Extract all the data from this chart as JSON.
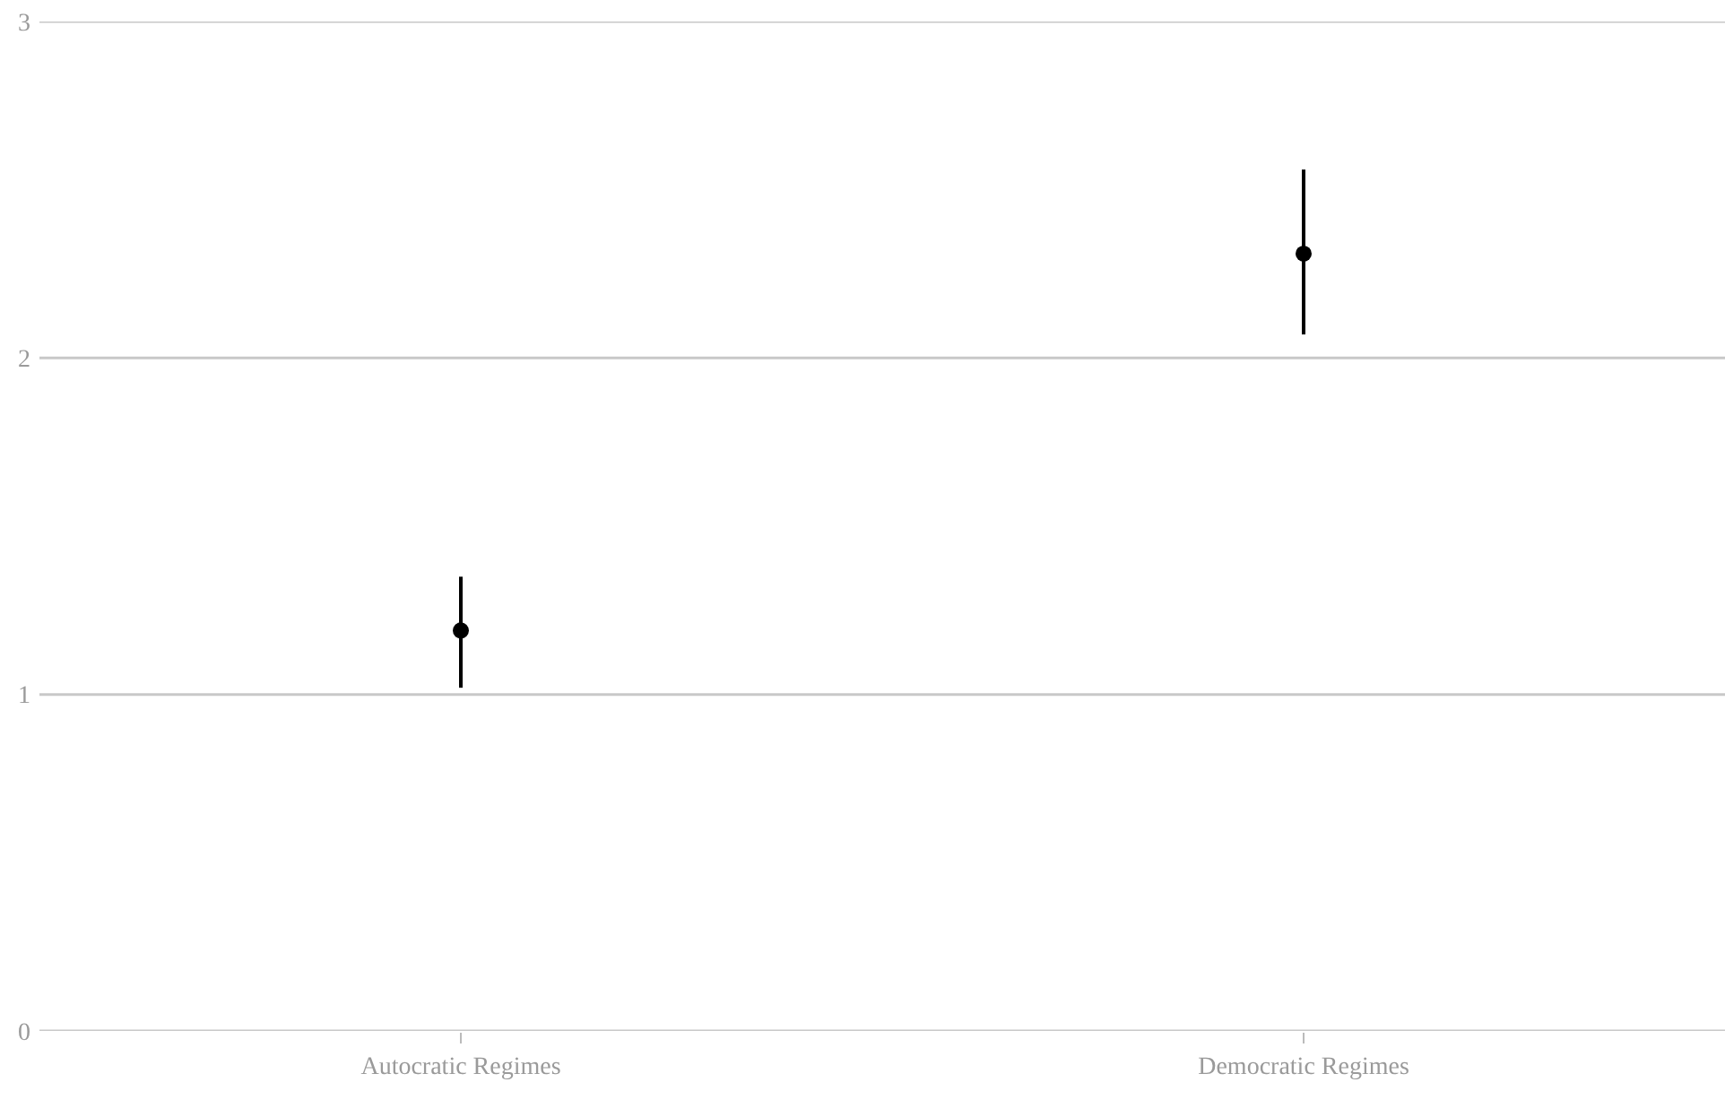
{
  "chart_data": {
    "type": "scatter",
    "categories": [
      "Autocratic Regimes",
      "Democratic Regimes"
    ],
    "series": [
      {
        "color": "#000000",
        "values": [
          1.19,
          2.31
        ],
        "errors": [
          [
            1.02,
            1.35
          ],
          [
            2.07,
            2.56
          ]
        ]
      }
    ],
    "ylim": [
      0,
      3
    ],
    "yticks": [
      0,
      1,
      2,
      3
    ],
    "grid": "y",
    "marker": "circle"
  }
}
